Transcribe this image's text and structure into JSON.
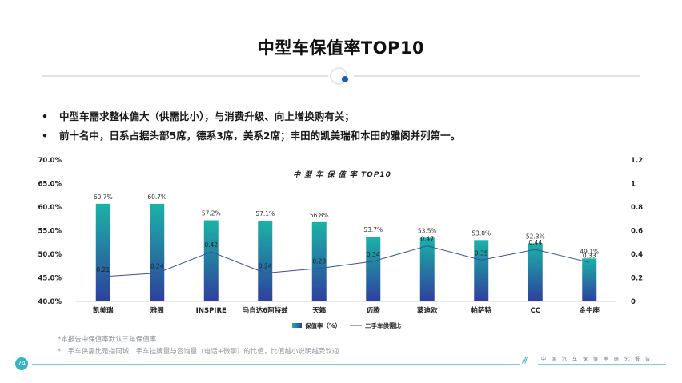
{
  "page": {
    "title": "中型车保值率TOP10",
    "bullets": [
      "中型车需求整体偏大（供需比小），与消费升级、向上增换购有关；",
      "前十名中，日系占据头部5席，德系3席，美系2席；丰田的凯美瑞和本田的雅阁并列第一。"
    ],
    "bullet_marker": "•",
    "footnotes": [
      "*本报告中保值率默认三年保值率",
      "*二手车供需比是指同城二手车挂牌量与咨询量（电话+微聊）的比值，比值越小说明越受欢迎"
    ],
    "page_number": "74",
    "footer_text": "中国汽车保值率研究报告",
    "footer_slashes": "///"
  },
  "colors": {
    "bar_top": "#1bb3a6",
    "bar_bottom": "#2f3f9e",
    "line": "#3b4f9e",
    "accent": "#35b3c0",
    "emblem_dot": "#1b58b8"
  },
  "chart_data": {
    "type": "bar",
    "title": "中 型 车 保 值 率 TOP10",
    "categories": [
      "凯美瑞",
      "雅阁",
      "INSPIRE",
      "马自达6阿特兹",
      "天籁",
      "迈腾",
      "蒙迪欧",
      "帕萨特",
      "CC",
      "金牛座"
    ],
    "series": [
      {
        "name": "保值率（%）",
        "kind": "bar",
        "axis": "left",
        "values": [
          60.7,
          60.7,
          57.2,
          57.1,
          56.8,
          53.7,
          53.5,
          53.0,
          52.3,
          49.1
        ],
        "labels": [
          "60.7%",
          "60.7%",
          "57.2%",
          "57.1%",
          "56.8%",
          "53.7%",
          "53.5%",
          "53.0%",
          "52.3%",
          "49.1%"
        ]
      },
      {
        "name": "二手车供需比",
        "kind": "line",
        "axis": "right",
        "values": [
          0.21,
          0.24,
          0.42,
          0.24,
          0.28,
          0.34,
          0.47,
          0.35,
          0.44,
          0.33
        ],
        "labels": [
          "0.21",
          "0.24",
          "0.42",
          "0.24",
          "0.28",
          "0.34",
          "0.47",
          "0.35",
          "0.44",
          "0.33"
        ]
      }
    ],
    "y_left": {
      "min": 40,
      "max": 70,
      "ticks": [
        "40.0%",
        "45.0%",
        "50.0%",
        "55.0%",
        "60.0%",
        "65.0%",
        "70.0%"
      ]
    },
    "y_right": {
      "min": 0,
      "max": 1.2,
      "ticks": [
        "0",
        "0.2",
        "0.4",
        "0.6",
        "0.8",
        "1",
        "1.2"
      ]
    },
    "grid": false,
    "legend_position": "bottom"
  }
}
